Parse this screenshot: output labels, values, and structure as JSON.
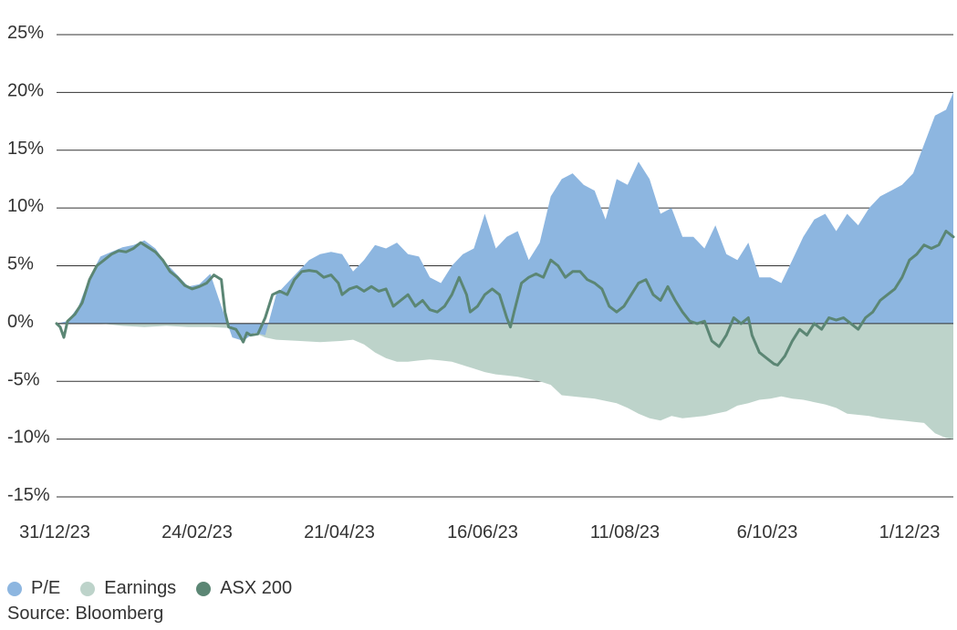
{
  "chart_data": {
    "type": "area",
    "x_ticks": [
      "31/12/23",
      "24/02/23",
      "21/04/23",
      "16/06/23",
      "11/08/23",
      "6/10/23",
      "1/12/23"
    ],
    "y_ticks": [
      "25%",
      "20%",
      "15%",
      "10%",
      "5%",
      "0%",
      "-5%",
      "-10%",
      "-15%"
    ],
    "ylim": [
      -15,
      25
    ],
    "x_range": [
      0,
      245
    ],
    "grid": true,
    "legend_position": "bottom-left",
    "series": [
      {
        "name": "P/E",
        "type": "area",
        "color": "#8db6e0",
        "points": [
          [
            0,
            0.0
          ],
          [
            3,
            0.2
          ],
          [
            6,
            1.5
          ],
          [
            9,
            4.0
          ],
          [
            12,
            5.8
          ],
          [
            15,
            6.2
          ],
          [
            18,
            6.6
          ],
          [
            21,
            6.8
          ],
          [
            24,
            7.2
          ],
          [
            27,
            6.5
          ],
          [
            30,
            5.2
          ],
          [
            33,
            4.2
          ],
          [
            36,
            3.2
          ],
          [
            39,
            3.4
          ],
          [
            42,
            4.3
          ],
          [
            45,
            1.5
          ],
          [
            48,
            -1.2
          ],
          [
            51,
            -1.5
          ],
          [
            54,
            -0.8
          ],
          [
            57,
            -1.0
          ],
          [
            60,
            2.5
          ],
          [
            63,
            3.5
          ],
          [
            66,
            4.5
          ],
          [
            69,
            5.5
          ],
          [
            72,
            6.0
          ],
          [
            75,
            6.2
          ],
          [
            78,
            6.0
          ],
          [
            81,
            4.5
          ],
          [
            84,
            5.5
          ],
          [
            87,
            6.8
          ],
          [
            90,
            6.5
          ],
          [
            93,
            7.0
          ],
          [
            96,
            6.0
          ],
          [
            99,
            5.8
          ],
          [
            102,
            4.0
          ],
          [
            105,
            3.5
          ],
          [
            108,
            5.0
          ],
          [
            111,
            6.0
          ],
          [
            114,
            6.5
          ],
          [
            117,
            9.5
          ],
          [
            120,
            6.5
          ],
          [
            123,
            7.5
          ],
          [
            126,
            8.0
          ],
          [
            129,
            5.5
          ],
          [
            132,
            7.0
          ],
          [
            135,
            11.0
          ],
          [
            138,
            12.5
          ],
          [
            141,
            13.0
          ],
          [
            144,
            12.0
          ],
          [
            147,
            11.5
          ],
          [
            150,
            9.0
          ],
          [
            153,
            12.5
          ],
          [
            156,
            12.0
          ],
          [
            159,
            14.0
          ],
          [
            162,
            12.5
          ],
          [
            165,
            9.5
          ],
          [
            168,
            10.0
          ],
          [
            171,
            7.5
          ],
          [
            174,
            7.5
          ],
          [
            177,
            6.5
          ],
          [
            180,
            8.5
          ],
          [
            183,
            6.0
          ],
          [
            186,
            5.5
          ],
          [
            189,
            7.0
          ],
          [
            192,
            4.0
          ],
          [
            195,
            4.0
          ],
          [
            198,
            3.5
          ],
          [
            201,
            5.5
          ],
          [
            204,
            7.5
          ],
          [
            207,
            9.0
          ],
          [
            210,
            9.5
          ],
          [
            213,
            8.0
          ],
          [
            216,
            9.5
          ],
          [
            219,
            8.5
          ],
          [
            222,
            10.0
          ],
          [
            225,
            11.0
          ],
          [
            228,
            11.5
          ],
          [
            231,
            12.0
          ],
          [
            234,
            13.0
          ],
          [
            237,
            15.5
          ],
          [
            240,
            18.0
          ],
          [
            243,
            18.5
          ],
          [
            245,
            20.0
          ]
        ]
      },
      {
        "name": "Earnings",
        "type": "area",
        "color": "#bdd3ca",
        "points": [
          [
            0,
            0.0
          ],
          [
            6,
            0.0
          ],
          [
            12,
            0.0
          ],
          [
            18,
            -0.2
          ],
          [
            24,
            -0.3
          ],
          [
            30,
            -0.2
          ],
          [
            36,
            -0.3
          ],
          [
            42,
            -0.3
          ],
          [
            48,
            -0.4
          ],
          [
            54,
            -0.8
          ],
          [
            57,
            -1.2
          ],
          [
            60,
            -1.4
          ],
          [
            66,
            -1.5
          ],
          [
            72,
            -1.6
          ],
          [
            78,
            -1.5
          ],
          [
            81,
            -1.4
          ],
          [
            84,
            -1.8
          ],
          [
            87,
            -2.5
          ],
          [
            90,
            -3.0
          ],
          [
            93,
            -3.3
          ],
          [
            96,
            -3.3
          ],
          [
            99,
            -3.2
          ],
          [
            102,
            -3.1
          ],
          [
            105,
            -3.2
          ],
          [
            108,
            -3.3
          ],
          [
            111,
            -3.6
          ],
          [
            114,
            -3.9
          ],
          [
            117,
            -4.2
          ],
          [
            120,
            -4.4
          ],
          [
            123,
            -4.5
          ],
          [
            126,
            -4.6
          ],
          [
            129,
            -4.8
          ],
          [
            132,
            -5.0
          ],
          [
            135,
            -5.3
          ],
          [
            138,
            -6.2
          ],
          [
            141,
            -6.3
          ],
          [
            144,
            -6.4
          ],
          [
            147,
            -6.5
          ],
          [
            150,
            -6.7
          ],
          [
            153,
            -6.9
          ],
          [
            156,
            -7.3
          ],
          [
            159,
            -7.8
          ],
          [
            162,
            -8.2
          ],
          [
            165,
            -8.4
          ],
          [
            168,
            -8.0
          ],
          [
            171,
            -8.2
          ],
          [
            174,
            -8.1
          ],
          [
            177,
            -8.0
          ],
          [
            180,
            -7.8
          ],
          [
            183,
            -7.6
          ],
          [
            186,
            -7.1
          ],
          [
            189,
            -6.9
          ],
          [
            192,
            -6.6
          ],
          [
            195,
            -6.5
          ],
          [
            198,
            -6.3
          ],
          [
            201,
            -6.5
          ],
          [
            204,
            -6.6
          ],
          [
            207,
            -6.8
          ],
          [
            210,
            -7.0
          ],
          [
            213,
            -7.3
          ],
          [
            216,
            -7.8
          ],
          [
            219,
            -7.9
          ],
          [
            222,
            -8.0
          ],
          [
            225,
            -8.2
          ],
          [
            228,
            -8.3
          ],
          [
            231,
            -8.4
          ],
          [
            234,
            -8.5
          ],
          [
            237,
            -8.6
          ],
          [
            240,
            -9.5
          ],
          [
            243,
            -9.9
          ],
          [
            245,
            -10.0
          ]
        ]
      },
      {
        "name": "ASX 200",
        "type": "line",
        "color": "#5b8674",
        "points": [
          [
            0,
            0.0
          ],
          [
            1,
            -0.3
          ],
          [
            2,
            -1.2
          ],
          [
            3,
            0.2
          ],
          [
            5,
            0.8
          ],
          [
            7,
            1.8
          ],
          [
            9,
            3.8
          ],
          [
            11,
            5.0
          ],
          [
            13,
            5.5
          ],
          [
            15,
            6.0
          ],
          [
            17,
            6.3
          ],
          [
            19,
            6.2
          ],
          [
            21,
            6.5
          ],
          [
            23,
            7.0
          ],
          [
            25,
            6.6
          ],
          [
            27,
            6.2
          ],
          [
            29,
            5.5
          ],
          [
            31,
            4.5
          ],
          [
            33,
            4.0
          ],
          [
            35,
            3.3
          ],
          [
            37,
            3.0
          ],
          [
            39,
            3.2
          ],
          [
            41,
            3.5
          ],
          [
            43,
            4.2
          ],
          [
            45,
            3.8
          ],
          [
            46,
            1.0
          ],
          [
            47,
            -0.3
          ],
          [
            49,
            -0.5
          ],
          [
            50,
            -1.0
          ],
          [
            51,
            -1.6
          ],
          [
            52,
            -0.8
          ],
          [
            53,
            -1.0
          ],
          [
            55,
            -0.9
          ],
          [
            57,
            0.5
          ],
          [
            59,
            2.5
          ],
          [
            61,
            2.8
          ],
          [
            63,
            2.5
          ],
          [
            65,
            3.8
          ],
          [
            67,
            4.5
          ],
          [
            69,
            4.6
          ],
          [
            71,
            4.5
          ],
          [
            73,
            4.0
          ],
          [
            75,
            4.2
          ],
          [
            77,
            3.5
          ],
          [
            78,
            2.5
          ],
          [
            80,
            3.0
          ],
          [
            82,
            3.2
          ],
          [
            84,
            2.8
          ],
          [
            86,
            3.2
          ],
          [
            88,
            2.8
          ],
          [
            90,
            3.0
          ],
          [
            92,
            1.5
          ],
          [
            94,
            2.0
          ],
          [
            96,
            2.5
          ],
          [
            98,
            1.5
          ],
          [
            100,
            2.0
          ],
          [
            102,
            1.2
          ],
          [
            104,
            1.0
          ],
          [
            106,
            1.5
          ],
          [
            108,
            2.5
          ],
          [
            110,
            4.0
          ],
          [
            112,
            2.5
          ],
          [
            113,
            1.0
          ],
          [
            115,
            1.5
          ],
          [
            117,
            2.5
          ],
          [
            119,
            3.0
          ],
          [
            121,
            2.5
          ],
          [
            123,
            0.5
          ],
          [
            124,
            -0.3
          ],
          [
            125,
            1.0
          ],
          [
            127,
            3.5
          ],
          [
            129,
            4.0
          ],
          [
            131,
            4.3
          ],
          [
            133,
            4.0
          ],
          [
            135,
            5.5
          ],
          [
            137,
            5.0
          ],
          [
            139,
            4.0
          ],
          [
            141,
            4.5
          ],
          [
            143,
            4.5
          ],
          [
            145,
            3.8
          ],
          [
            147,
            3.5
          ],
          [
            149,
            3.0
          ],
          [
            151,
            1.5
          ],
          [
            153,
            1.0
          ],
          [
            155,
            1.5
          ],
          [
            157,
            2.5
          ],
          [
            159,
            3.5
          ],
          [
            161,
            3.8
          ],
          [
            163,
            2.5
          ],
          [
            165,
            2.0
          ],
          [
            167,
            3.2
          ],
          [
            169,
            2.0
          ],
          [
            171,
            1.0
          ],
          [
            173,
            0.2
          ],
          [
            175,
            0.0
          ],
          [
            177,
            0.2
          ],
          [
            179,
            -1.5
          ],
          [
            181,
            -2.0
          ],
          [
            183,
            -1.0
          ],
          [
            185,
            0.5
          ],
          [
            187,
            0.0
          ],
          [
            189,
            0.5
          ],
          [
            190,
            -1.0
          ],
          [
            192,
            -2.5
          ],
          [
            194,
            -3.0
          ],
          [
            196,
            -3.5
          ],
          [
            197,
            -3.6
          ],
          [
            199,
            -2.8
          ],
          [
            201,
            -1.5
          ],
          [
            203,
            -0.5
          ],
          [
            205,
            -1.0
          ],
          [
            207,
            0.0
          ],
          [
            209,
            -0.5
          ],
          [
            211,
            0.5
          ],
          [
            213,
            0.3
          ],
          [
            215,
            0.5
          ],
          [
            217,
            0.0
          ],
          [
            219,
            -0.5
          ],
          [
            221,
            0.5
          ],
          [
            223,
            1.0
          ],
          [
            225,
            2.0
          ],
          [
            227,
            2.5
          ],
          [
            229,
            3.0
          ],
          [
            231,
            4.0
          ],
          [
            233,
            5.5
          ],
          [
            235,
            6.0
          ],
          [
            237,
            6.8
          ],
          [
            239,
            6.5
          ],
          [
            241,
            6.8
          ],
          [
            243,
            8.0
          ],
          [
            245,
            7.5
          ]
        ]
      }
    ],
    "source": "Source: Bloomberg"
  }
}
